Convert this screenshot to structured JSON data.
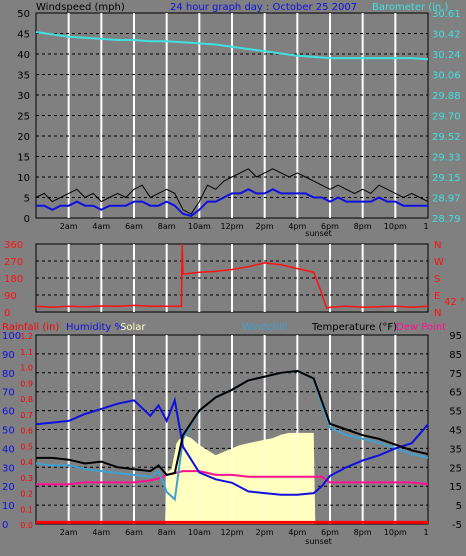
{
  "header": {
    "left_label": "Windspeed (mph)",
    "title": "24 hour graph day : October 25 2007",
    "right_label": "Barometer (in.)"
  },
  "colors": {
    "background": "#808080",
    "grid_major": "#ffffff",
    "grid_minor": "#000000",
    "wind": "#000000",
    "gust": "#1010e0",
    "baro": "#40e0e0",
    "direction": "#ff1010",
    "temperature": "#000000",
    "humidity": "#1010e0",
    "windchill": "#40a0d0",
    "dewpoint": "#ff1090",
    "solar": "#ffffc0",
    "rain": "#ff0000",
    "title_blue": "#1010e0",
    "title_cyan": "#40e0e0"
  },
  "time_labels": [
    "2am",
    "4am",
    "6am",
    "8am",
    "10am",
    "12pm",
    "2pm",
    "4pm",
    "6pm",
    "8pm",
    "10pm"
  ],
  "sunset_label": "sunset",
  "end_label": "1",
  "chart_data": [
    {
      "type": "line",
      "name": "windspeed-barometer",
      "x_unit": "hour",
      "xlim": [
        0,
        24
      ],
      "left_axis": {
        "label": "Windspeed (mph)",
        "ticks": [
          "0",
          "5",
          "10",
          "15",
          "20",
          "25",
          "30",
          "35",
          "40",
          "45",
          "50"
        ],
        "ylim": [
          0,
          50
        ]
      },
      "right_axis": {
        "label": "Barometer (in.)",
        "ticks": [
          "28.79",
          "28.97",
          "29.15",
          "29.33",
          "29.52",
          "29.70",
          "29.88",
          "30.06",
          "30.24",
          "30.42",
          "30.61"
        ],
        "ylim": [
          28.79,
          30.61
        ]
      },
      "series": [
        {
          "axis": "left",
          "x": [
            0,
            0.5,
            1,
            1.5,
            2,
            2.5,
            3,
            3.5,
            4,
            4.5,
            5,
            5.5,
            6,
            6.5,
            7,
            7.5,
            8,
            8.5,
            9,
            9.5,
            10,
            10.5,
            11,
            11.5,
            12,
            12.5,
            13,
            13.5,
            14,
            14.5,
            15,
            15.5,
            16,
            16.5,
            17,
            17.5,
            18,
            18.5,
            19,
            19.5,
            20,
            20.5,
            21,
            21.5,
            22,
            22.5,
            23,
            23.5,
            24
          ],
          "values": [
            5,
            6,
            4,
            5,
            6,
            7,
            5,
            6,
            4,
            5,
            6,
            5,
            7,
            8,
            5,
            6,
            7,
            6,
            2,
            1,
            4,
            8,
            7,
            9,
            10,
            11,
            12,
            10,
            11,
            12,
            11,
            10,
            11,
            10,
            9,
            8,
            7,
            8,
            7,
            6,
            7,
            6,
            8,
            7,
            6,
            5,
            6,
            5,
            4
          ]
        },
        {
          "axis": "left",
          "x": [
            0,
            0.5,
            1,
            1.5,
            2,
            2.5,
            3,
            3.5,
            4,
            4.5,
            5,
            5.5,
            6,
            6.5,
            7,
            7.5,
            8,
            8.5,
            9,
            9.5,
            10,
            10.5,
            11,
            11.5,
            12,
            12.5,
            13,
            13.5,
            14,
            14.5,
            15,
            15.5,
            16,
            16.5,
            17,
            17.5,
            18,
            18.5,
            19,
            19.5,
            20,
            20.5,
            21,
            21.5,
            22,
            22.5,
            23,
            23.5,
            24
          ],
          "values": [
            3,
            3,
            2,
            3,
            3,
            4,
            3,
            3,
            2,
            3,
            3,
            3,
            4,
            4,
            3,
            3,
            4,
            3,
            1,
            0.5,
            2,
            4,
            4,
            5,
            6,
            6,
            7,
            6,
            6,
            7,
            6,
            6,
            6,
            6,
            5,
            5,
            4,
            5,
            4,
            4,
            4,
            4,
            5,
            4,
            4,
            3,
            3,
            3,
            3
          ]
        },
        {
          "axis": "right",
          "x": [
            0,
            1,
            2,
            3,
            4,
            5,
            6,
            7,
            8,
            9,
            10,
            11,
            12,
            13,
            14,
            15,
            16,
            17,
            18,
            19,
            20,
            21,
            22,
            23,
            24
          ],
          "values": [
            30.44,
            30.42,
            30.4,
            30.39,
            30.38,
            30.37,
            30.37,
            30.36,
            30.36,
            30.35,
            30.34,
            30.33,
            30.31,
            30.29,
            30.27,
            30.25,
            30.23,
            30.22,
            30.21,
            30.21,
            30.21,
            30.21,
            30.21,
            30.21,
            30.2
          ]
        }
      ]
    },
    {
      "type": "line",
      "name": "wind-direction",
      "x_unit": "hour",
      "xlim": [
        0,
        24
      ],
      "left_axis": {
        "ticks": [
          "0",
          "90",
          "180",
          "270",
          "360"
        ],
        "ylim": [
          0,
          360
        ]
      },
      "right_axis": {
        "ticks": [
          "N",
          "E",
          "S",
          "W",
          "N"
        ]
      },
      "side_label": "42 °",
      "x": [
        0,
        1,
        2,
        3,
        4,
        5,
        6,
        7,
        8,
        8.9,
        8.95,
        9,
        10,
        11,
        12,
        13,
        14,
        15,
        16,
        16.5,
        17,
        17.4,
        17.8,
        18,
        19,
        20,
        21,
        22,
        23,
        24
      ],
      "values": [
        30,
        25,
        30,
        28,
        32,
        30,
        35,
        30,
        30,
        30,
        360,
        200,
        210,
        215,
        225,
        240,
        260,
        250,
        230,
        220,
        210,
        120,
        20,
        25,
        30,
        25,
        28,
        30,
        25,
        30
      ]
    },
    {
      "type": "line",
      "name": "rain-humidity-temperature",
      "x_unit": "hour",
      "xlim": [
        0,
        24
      ],
      "labels": {
        "rain": "Rainfall (in)",
        "humidity": "Humidity %",
        "solar": "Solar",
        "windchill": "Windchill",
        "temperature": "Temperature (°F)",
        "dewpoint": "Dew Point"
      },
      "rain_axis": {
        "ticks": [
          "0.0",
          "0.1",
          "0.2",
          "0.3",
          "0.4",
          "0.5",
          "0.6",
          "0.7",
          "0.8",
          "0.9",
          "1.0",
          "1.1",
          "1.2"
        ],
        "ylim": [
          0,
          1.2
        ]
      },
      "humidity_axis": {
        "ticks": [
          "0",
          "10",
          "20",
          "30",
          "40",
          "50",
          "60",
          "70",
          "80",
          "90",
          "100"
        ],
        "ylim": [
          0,
          110
        ]
      },
      "temp_axis": {
        "ticks": [
          "-5",
          "5",
          "15",
          "25",
          "35",
          "45",
          "55",
          "65",
          "75",
          "85",
          "95"
        ],
        "ylim": [
          -5,
          95
        ]
      },
      "series": [
        {
          "key": "temperature",
          "x": [
            0,
            1,
            2,
            3,
            4,
            5,
            6,
            7,
            7.5,
            8,
            8.5,
            9,
            10,
            11,
            12,
            13,
            14,
            15,
            16,
            17,
            17.5,
            18,
            19,
            20,
            21,
            22,
            23,
            24
          ],
          "values": [
            30,
            30,
            29,
            27,
            28,
            25,
            24,
            23,
            26,
            21,
            22,
            42,
            55,
            62,
            66,
            71,
            73,
            75,
            76,
            72,
            60,
            48,
            45,
            42,
            40,
            37,
            34,
            32
          ]
        },
        {
          "key": "humidity",
          "x": [
            0,
            1,
            2,
            3,
            4,
            5,
            6,
            7,
            7.5,
            8,
            8.5,
            9,
            10,
            11,
            12,
            13,
            14,
            15,
            16,
            17,
            17.5,
            18,
            19,
            20,
            21,
            22,
            23,
            24
          ],
          "values": [
            58,
            59,
            60,
            64,
            67,
            70,
            72,
            63,
            69,
            60,
            72,
            45,
            30,
            26,
            24,
            19,
            18,
            17,
            17,
            18,
            22,
            28,
            33,
            37,
            40,
            44,
            47,
            58
          ]
        },
        {
          "key": "windchill",
          "x": [
            0,
            1,
            2,
            3,
            4,
            5,
            6,
            7,
            7.5,
            8,
            8.5,
            9,
            10,
            11,
            12,
            13,
            14,
            15,
            16,
            17,
            17.5,
            18,
            19,
            20,
            21,
            22,
            23,
            24
          ],
          "values": [
            27,
            26,
            26,
            24,
            23,
            22,
            21,
            20,
            23,
            12,
            8,
            40,
            55,
            62,
            66,
            71,
            73,
            75,
            76,
            72,
            58,
            46,
            42,
            40,
            38,
            35,
            32,
            30
          ]
        },
        {
          "key": "dewpoint",
          "x": [
            0,
            1,
            2,
            3,
            4,
            5,
            6,
            7,
            7.5,
            8,
            8.5,
            9,
            10,
            11,
            12,
            13,
            14,
            15,
            16,
            17,
            17.5,
            18,
            19,
            20,
            21,
            22,
            23,
            24
          ],
          "values": [
            16,
            16,
            16,
            17,
            17,
            17,
            17,
            18,
            19,
            21,
            22,
            23,
            23,
            21,
            21,
            20,
            20,
            20,
            20,
            20,
            20,
            17,
            17,
            17,
            17,
            17,
            17,
            16
          ]
        },
        {
          "key": "solar",
          "x": [
            7.9,
            8,
            8.3,
            8.6,
            9,
            9.5,
            10,
            10.5,
            11,
            11.5,
            12,
            12.5,
            13,
            13.5,
            14,
            14.5,
            15,
            15.5,
            16,
            16.5,
            17,
            17.1
          ],
          "values": [
            0,
            30,
            32,
            47,
            52,
            50,
            46,
            43,
            40,
            42,
            44,
            46,
            47,
            48,
            49,
            50,
            52,
            53,
            53,
            53,
            53,
            0
          ]
        },
        {
          "key": "rain",
          "x": [
            0,
            24
          ],
          "values": [
            0.01,
            0.01
          ]
        }
      ]
    }
  ]
}
